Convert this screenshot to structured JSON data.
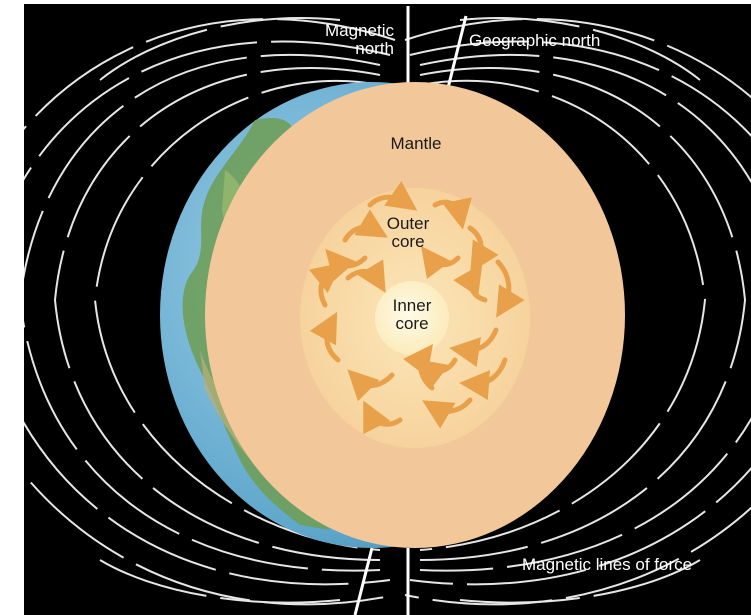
{
  "labels": {
    "magnetic_north_line1": "Magnetic",
    "magnetic_north_line2": "north",
    "geographic_north": "Geographic north",
    "mantle": "Mantle",
    "outer_core_line1": "Outer",
    "outer_core_line2": "core",
    "inner_core_line1": "Inner",
    "inner_core_line2": "core",
    "field_lines": "Magnetic lines of force"
  },
  "colors": {
    "background": "#000000",
    "field_line": "#e6e6e6",
    "axis_line": "#ffffff",
    "mantle": "#f2c79a",
    "outer_core": "#f8d59c",
    "inner_core": "#fff6d8",
    "convection_arrow": "#e8a04a",
    "ocean": "#6aaed0",
    "land": "#6f9f5a",
    "label_light": "#ffffff",
    "label_dark": "#1a1a1a"
  },
  "icons": {
    "arrows": "convection-current-arrow-icon"
  }
}
